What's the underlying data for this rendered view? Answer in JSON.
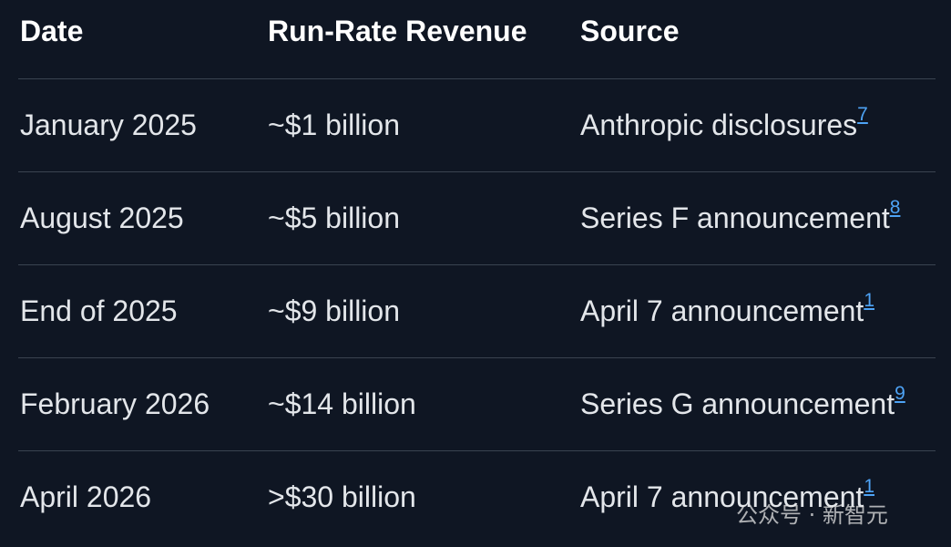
{
  "table": {
    "headers": [
      "Date",
      "Run-Rate Revenue",
      "Source"
    ],
    "rows": [
      [
        "January 2025",
        "~$1 billion",
        {
          "text": "Anthropic disclosures",
          "ref": 7
        }
      ],
      [
        "August 2025",
        "~$5 billion",
        {
          "text": "Series F announcement",
          "ref": 8
        }
      ],
      [
        "End of 2025",
        "~$9 billion",
        {
          "text": "April 7 announcement",
          "ref": 1
        }
      ],
      [
        "February 2026",
        "~$14 billion",
        {
          "text": "Series G announcement",
          "ref": 9
        }
      ],
      [
        "April 2026",
        ">$30 billion",
        {
          "text": "April 7 announcement",
          "ref": 1
        }
      ]
    ]
  },
  "watermark": "公众号 · 新智元"
}
